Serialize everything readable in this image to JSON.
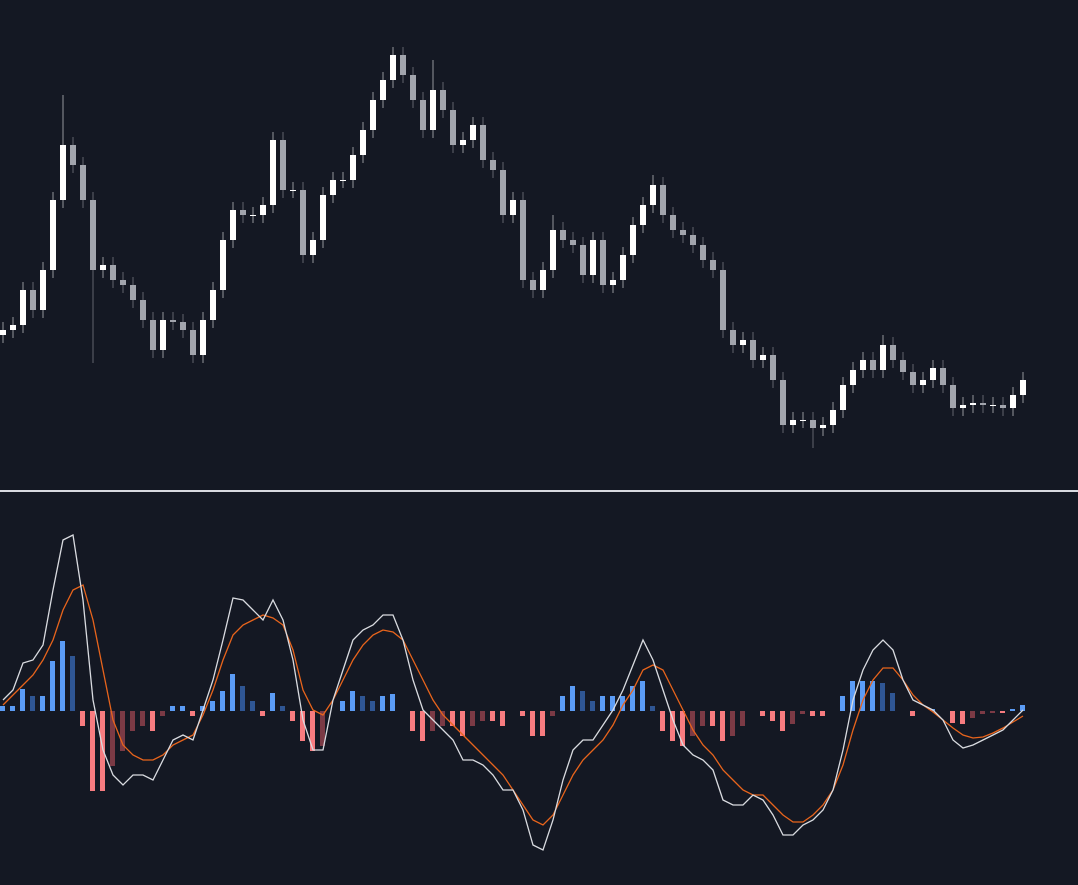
{
  "chart_data": [
    {
      "type": "candlestick",
      "ylim": [
        0,
        490
      ],
      "up_color": "#ffffff",
      "down_color": "#a2a5ad",
      "open": [
        155,
        160,
        165,
        200,
        180,
        220,
        290,
        345,
        325,
        290,
        220,
        225,
        210,
        205,
        190,
        170,
        140,
        170,
        168,
        160,
        135,
        170,
        200,
        250,
        280,
        275,
        275,
        285,
        350,
        300,
        300,
        235,
        250,
        295,
        310,
        310,
        335,
        360,
        390,
        410,
        435,
        415,
        390,
        360,
        400,
        380,
        345,
        350,
        365,
        330,
        320,
        275,
        290,
        210,
        200,
        220,
        260,
        250,
        245,
        215,
        250,
        205,
        210,
        235,
        265,
        285,
        305,
        275,
        260,
        255,
        245,
        230,
        220,
        160,
        145,
        150,
        130,
        135,
        110,
        65,
        70,
        70,
        62,
        65,
        80,
        105,
        120,
        130,
        120,
        145,
        130,
        118,
        105,
        110,
        122,
        105,
        82,
        85,
        87,
        85,
        85,
        82,
        95
      ],
      "high": [
        168,
        173,
        208,
        208,
        228,
        298,
        395,
        353,
        333,
        298,
        233,
        233,
        218,
        213,
        198,
        178,
        178,
        178,
        176,
        168,
        178,
        208,
        258,
        288,
        288,
        283,
        293,
        358,
        358,
        308,
        308,
        258,
        303,
        318,
        318,
        343,
        368,
        398,
        418,
        443,
        443,
        423,
        398,
        430,
        408,
        388,
        358,
        373,
        373,
        338,
        328,
        298,
        298,
        218,
        228,
        275,
        268,
        258,
        253,
        258,
        258,
        218,
        243,
        273,
        293,
        315,
        313,
        283,
        268,
        263,
        253,
        238,
        228,
        168,
        158,
        158,
        143,
        143,
        118,
        78,
        78,
        78,
        73,
        88,
        113,
        128,
        138,
        138,
        155,
        153,
        138,
        126,
        118,
        130,
        130,
        113,
        93,
        95,
        95,
        93,
        93,
        103,
        118
      ],
      "low": [
        147,
        152,
        157,
        172,
        172,
        212,
        282,
        317,
        282,
        127,
        212,
        202,
        197,
        182,
        162,
        132,
        132,
        160,
        152,
        127,
        127,
        162,
        192,
        242,
        267,
        267,
        267,
        277,
        292,
        292,
        227,
        227,
        242,
        287,
        302,
        302,
        327,
        352,
        382,
        402,
        407,
        382,
        352,
        352,
        372,
        337,
        337,
        342,
        322,
        312,
        267,
        267,
        202,
        192,
        192,
        212,
        242,
        237,
        207,
        207,
        197,
        197,
        202,
        227,
        257,
        277,
        267,
        252,
        247,
        237,
        222,
        212,
        152,
        137,
        137,
        122,
        122,
        102,
        57,
        57,
        62,
        42,
        54,
        57,
        72,
        97,
        112,
        112,
        112,
        122,
        110,
        97,
        97,
        102,
        97,
        74,
        74,
        77,
        77,
        77,
        74,
        74,
        87
      ],
      "close": [
        160,
        165,
        200,
        180,
        220,
        290,
        345,
        325,
        290,
        220,
        225,
        210,
        205,
        190,
        170,
        140,
        170,
        168,
        160,
        135,
        170,
        200,
        250,
        280,
        275,
        275,
        285,
        350,
        300,
        300,
        235,
        250,
        295,
        310,
        310,
        335,
        360,
        390,
        410,
        435,
        415,
        390,
        360,
        400,
        380,
        345,
        350,
        365,
        330,
        320,
        275,
        290,
        210,
        200,
        220,
        260,
        250,
        245,
        215,
        250,
        205,
        210,
        235,
        265,
        285,
        305,
        275,
        260,
        255,
        245,
        230,
        220,
        160,
        145,
        150,
        130,
        135,
        110,
        65,
        70,
        70,
        62,
        65,
        80,
        105,
        120,
        130,
        120,
        145,
        130,
        118,
        105,
        110,
        122,
        105,
        82,
        85,
        87,
        85,
        85,
        82,
        95,
        110
      ]
    },
    {
      "type": "macd",
      "ylim": [
        -174,
        219
      ],
      "macd_color": "#d9dbe0",
      "signal_color": "#e8641c",
      "hist_colors": {
        "pos_rising": "#5b9cf6",
        "pos_falling": "#2f5694",
        "neg_falling": "#f77c80",
        "neg_rising": "#7b3a45"
      },
      "macd": [
        11,
        21,
        48,
        51,
        66,
        121,
        171,
        176,
        111,
        11,
        -39,
        -64,
        -74,
        -64,
        -64,
        -69,
        -49,
        -29,
        -24,
        -29,
        1,
        31,
        71,
        113,
        111,
        101,
        91,
        111,
        91,
        51,
        -9,
        -39,
        -39,
        11,
        41,
        71,
        81,
        86,
        96,
        96,
        71,
        31,
        1,
        -9,
        -19,
        -29,
        -49,
        -49,
        -54,
        -64,
        -79,
        -79,
        -99,
        -134,
        -139,
        -109,
        -69,
        -39,
        -29,
        -29,
        -14,
        1,
        21,
        46,
        71,
        51,
        21,
        -9,
        -34,
        -44,
        -49,
        -59,
        -89,
        -94,
        -94,
        -84,
        -89,
        -104,
        -124,
        -124,
        -114,
        -109,
        -99,
        -79,
        -39,
        11,
        41,
        61,
        71,
        61,
        31,
        11,
        6,
        1,
        -9,
        -29,
        -37,
        -34,
        -29,
        -24,
        -19,
        -9,
        1
      ],
      "signal": [
        6,
        16,
        26,
        36,
        51,
        71,
        101,
        121,
        126,
        91,
        41,
        -9,
        -34,
        -44,
        -49,
        -49,
        -44,
        -34,
        -29,
        -24,
        -4,
        21,
        51,
        76,
        86,
        91,
        96,
        93,
        86,
        61,
        21,
        1,
        -4,
        11,
        31,
        51,
        66,
        76,
        81,
        79,
        71,
        51,
        31,
        11,
        -4,
        -14,
        -24,
        -34,
        -44,
        -54,
        -64,
        -79,
        -94,
        -109,
        -114,
        -104,
        -84,
        -64,
        -49,
        -39,
        -29,
        -14,
        6,
        21,
        41,
        46,
        41,
        21,
        1,
        -19,
        -34,
        -44,
        -59,
        -69,
        -79,
        -84,
        -84,
        -94,
        -104,
        -111,
        -111,
        -104,
        -94,
        -79,
        -54,
        -19,
        11,
        31,
        43,
        43,
        31,
        16,
        6,
        -1,
        -9,
        -17,
        -24,
        -27,
        -26,
        -22,
        -17,
        -11,
        -5
      ],
      "histogram": [
        5,
        5,
        22,
        15,
        15,
        50,
        70,
        55,
        -15,
        -80,
        -80,
        -55,
        -40,
        -20,
        -15,
        -20,
        -5,
        5,
        5,
        -5,
        5,
        10,
        20,
        37,
        25,
        10,
        -5,
        18,
        5,
        -10,
        -30,
        -40,
        -35,
        0,
        10,
        20,
        15,
        10,
        15,
        17,
        0,
        -20,
        -30,
        -20,
        -15,
        -15,
        -25,
        -15,
        -10,
        -10,
        -15,
        0,
        -5,
        -25,
        -25,
        -5,
        15,
        25,
        20,
        10,
        15,
        15,
        15,
        25,
        30,
        5,
        -20,
        -30,
        -35,
        -25,
        -15,
        -15,
        -30,
        -25,
        -15,
        0,
        -5,
        -10,
        -20,
        -13,
        -3,
        -5,
        -5,
        0,
        15,
        30,
        30,
        30,
        28,
        18,
        0,
        -5,
        0,
        2,
        0,
        -12,
        -13,
        -7,
        -3,
        -2,
        -2,
        2,
        6
      ]
    }
  ]
}
